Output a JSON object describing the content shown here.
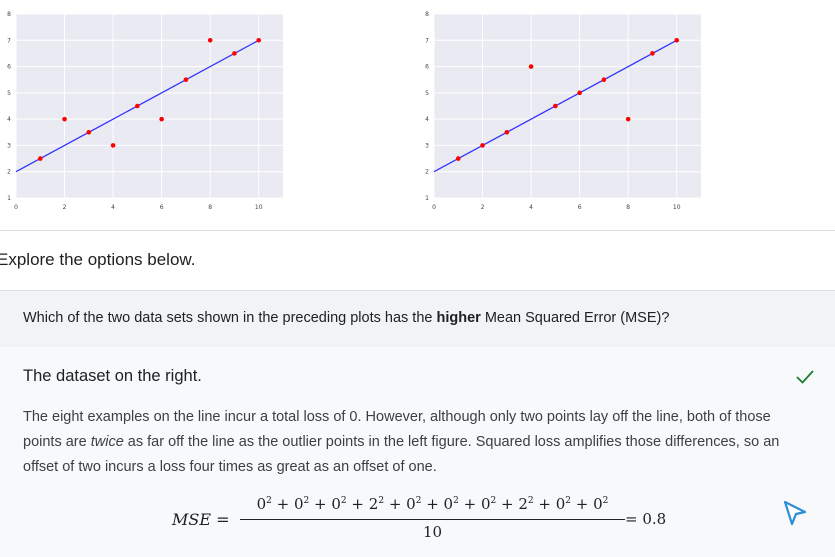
{
  "chart_data": [
    {
      "type": "scatter",
      "title": "",
      "xlabel": "",
      "ylabel": "",
      "xlim": [
        0,
        11
      ],
      "ylim": [
        1,
        8
      ],
      "grid": true,
      "x_ticks": [
        "0",
        "2",
        "4",
        "6",
        "8",
        "10"
      ],
      "y_ticks": [
        "1",
        "2",
        "3",
        "4",
        "5",
        "6",
        "7",
        "8"
      ],
      "points": [
        [
          1,
          2.5
        ],
        [
          2,
          4
        ],
        [
          3,
          3.5
        ],
        [
          4,
          3
        ],
        [
          5,
          4.5
        ],
        [
          6,
          4
        ],
        [
          7,
          5.5
        ],
        [
          8,
          7
        ],
        [
          9,
          6.5
        ],
        [
          10,
          7
        ]
      ],
      "line": [
        [
          0,
          2
        ],
        [
          10,
          7
        ]
      ],
      "point_color": "#ff0000",
      "line_color": "#3333ff",
      "background": "#eaeaf2"
    },
    {
      "type": "scatter",
      "title": "",
      "xlabel": "",
      "ylabel": "",
      "xlim": [
        0,
        11
      ],
      "ylim": [
        1,
        8
      ],
      "grid": true,
      "x_ticks": [
        "0",
        "2",
        "4",
        "6",
        "8",
        "10"
      ],
      "y_ticks": [
        "1",
        "2",
        "3",
        "4",
        "5",
        "6",
        "7",
        "8"
      ],
      "points": [
        [
          1,
          2.5
        ],
        [
          2,
          3
        ],
        [
          3,
          3.5
        ],
        [
          4,
          6
        ],
        [
          5,
          4.5
        ],
        [
          6,
          5
        ],
        [
          7,
          5.5
        ],
        [
          8,
          4
        ],
        [
          9,
          6.5
        ],
        [
          10,
          7
        ]
      ],
      "line": [
        [
          0,
          2
        ],
        [
          10,
          7
        ]
      ],
      "point_color": "#ff0000",
      "line_color": "#3333ff",
      "background": "#eaeaf2"
    }
  ],
  "intro_text": "Explore the options below.",
  "question": {
    "before": "Which of the two data sets shown in the preceding plots has the ",
    "bold": "higher",
    "after": " Mean Squared Error (MSE)?"
  },
  "answer": {
    "title": "The dataset on the right.",
    "status_icon": "check-icon",
    "status_color": "#188038",
    "explanation_1": "The eight examples on the line incur a total loss of 0. However, although only two points lay off the line, both of those points are ",
    "explanation_italic": "twice",
    "explanation_2": " as far off the line as the outlier points in the left figure. Squared loss amplifies those differences, so an offset of two incurs a loss four times as great as an offset of one."
  },
  "formula": {
    "lhs": "MSE =",
    "numerator_terms": [
      "0",
      "0",
      "0",
      "2",
      "0",
      "0",
      "0",
      "2",
      "0",
      "0"
    ],
    "exponent": "2",
    "denominator": "10",
    "rhs": "= 0.8"
  }
}
